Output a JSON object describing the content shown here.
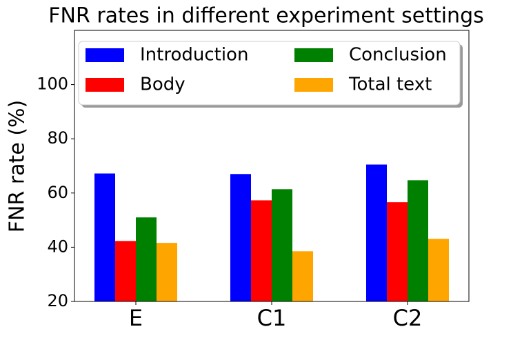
{
  "chart_data": {
    "type": "bar",
    "title": "FNR rates in different experiment settings",
    "y_label": "FNR rate (%)",
    "categories": [
      "E",
      "C1",
      "C2"
    ],
    "series": [
      {
        "name": "Introduction",
        "color": "#0000ff",
        "values": [
          67.2,
          67.0,
          70.5
        ]
      },
      {
        "name": "Body",
        "color": "#ff0000",
        "values": [
          42.3,
          57.3,
          56.6
        ]
      },
      {
        "name": "Conclusion",
        "color": "#008000",
        "values": [
          51.0,
          61.4,
          64.7
        ]
      },
      {
        "name": "Total text",
        "color": "#ffa500",
        "values": [
          41.6,
          38.5,
          43.1
        ]
      }
    ],
    "ylim": [
      20,
      120
    ],
    "yticks": [
      20,
      40,
      60,
      80,
      100
    ],
    "grid": false,
    "legend": "upper left"
  }
}
